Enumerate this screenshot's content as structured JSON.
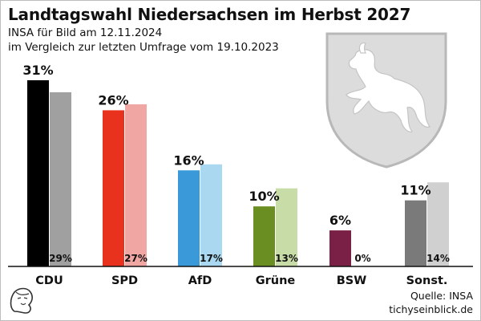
{
  "header": {
    "title": "Landtagswahl Niedersachsen im Herbst 2027",
    "subtitle_1": "INSA für Bild am 12.11.2024",
    "subtitle_2": "im Vergleich zur letzten Umfrage vom 19.10.2023"
  },
  "footer": {
    "source": "Quelle: INSA",
    "site": "tichyseinblick.de"
  },
  "icons": {
    "coat_of_arms": "lower-saxony-horse-shield-icon",
    "logo": "tichys-einblick-portrait-logo-icon"
  },
  "chart_data": {
    "type": "bar",
    "title": "Landtagswahl Niedersachsen im Herbst 2027",
    "xlabel": "",
    "ylabel": "",
    "ylim": [
      0,
      31
    ],
    "grid": false,
    "categories": [
      "CDU",
      "SPD",
      "AfD",
      "Grüne",
      "BSW",
      "Sonst."
    ],
    "series": [
      {
        "values": [
          31,
          26,
          16,
          10,
          6,
          11
        ],
        "colors": [
          "#000000",
          "#e8321e",
          "#3a9ad9",
          "#6b8e23",
          "#7a1f45",
          "#7a7a7a"
        ]
      },
      {
        "values": [
          29,
          27,
          17,
          13,
          0,
          14
        ],
        "colors": [
          "#a0a0a0",
          "#f0a7a4",
          "#a9d8f0",
          "#c8dca8",
          "#d9c2cc",
          "#d0d0d0"
        ]
      }
    ],
    "labels_current": [
      "31%",
      "26%",
      "16%",
      "10%",
      "6%",
      "11%"
    ],
    "labels_previous": [
      "29%",
      "27%",
      "17%",
      "13%",
      "0%",
      "14%"
    ]
  }
}
